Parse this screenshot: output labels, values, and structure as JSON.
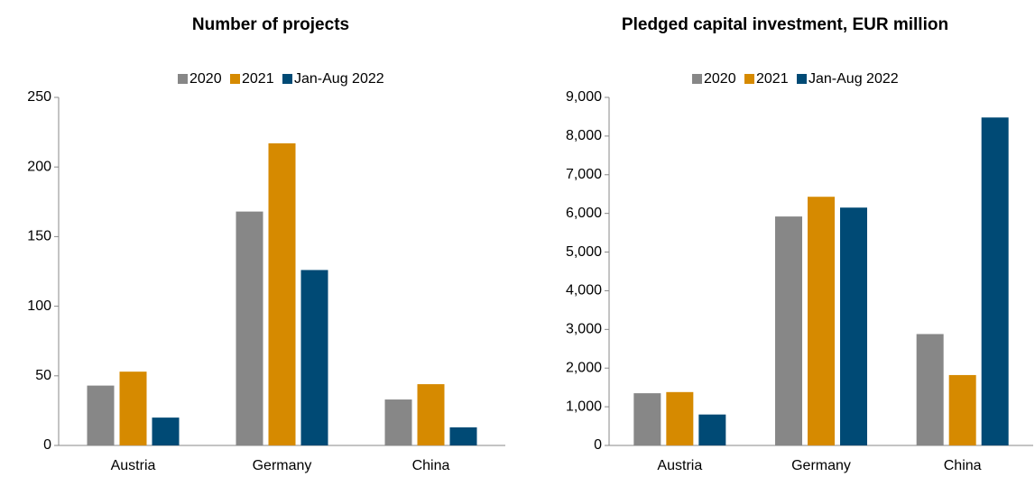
{
  "chart_data": [
    {
      "type": "bar",
      "title": "Number of projects",
      "categories": [
        "Austria",
        "Germany",
        "China"
      ],
      "series": [
        {
          "name": "2020",
          "color": "#878787",
          "values": [
            43,
            168,
            33
          ]
        },
        {
          "name": "2021",
          "color": "#d68a00",
          "values": [
            53,
            217,
            44
          ]
        },
        {
          "name": "Jan-Aug 2022",
          "color": "#004a75",
          "values": [
            20,
            126,
            13
          ]
        }
      ],
      "ylim": [
        0,
        250
      ],
      "yticks": [
        0,
        50,
        100,
        150,
        200,
        250
      ],
      "legend": "top"
    },
    {
      "type": "bar",
      "title": "Pledged capital investment, EUR million",
      "categories": [
        "Austria",
        "Germany",
        "China"
      ],
      "series": [
        {
          "name": "2020",
          "color": "#878787",
          "values": [
            1350,
            5920,
            2880
          ]
        },
        {
          "name": "2021",
          "color": "#d68a00",
          "values": [
            1380,
            6430,
            1820
          ]
        },
        {
          "name": "Jan-Aug 2022",
          "color": "#004a75",
          "values": [
            800,
            6150,
            8480
          ]
        }
      ],
      "ylim": [
        0,
        9000
      ],
      "yticks": [
        0,
        {
          "value": 1000,
          "label": "1,000"
        },
        {
          "value": 2000,
          "label": "2,000"
        },
        {
          "value": 3000,
          "label": "3,000"
        },
        {
          "value": 4000,
          "label": "4,000"
        },
        {
          "value": 5000,
          "label": "5,000"
        },
        {
          "value": 6000,
          "label": "6,000"
        },
        {
          "value": 7000,
          "label": "7,000"
        },
        {
          "value": 8000,
          "label": "8,000"
        },
        {
          "value": 9000,
          "label": "9,000"
        }
      ],
      "legend": "top"
    }
  ]
}
